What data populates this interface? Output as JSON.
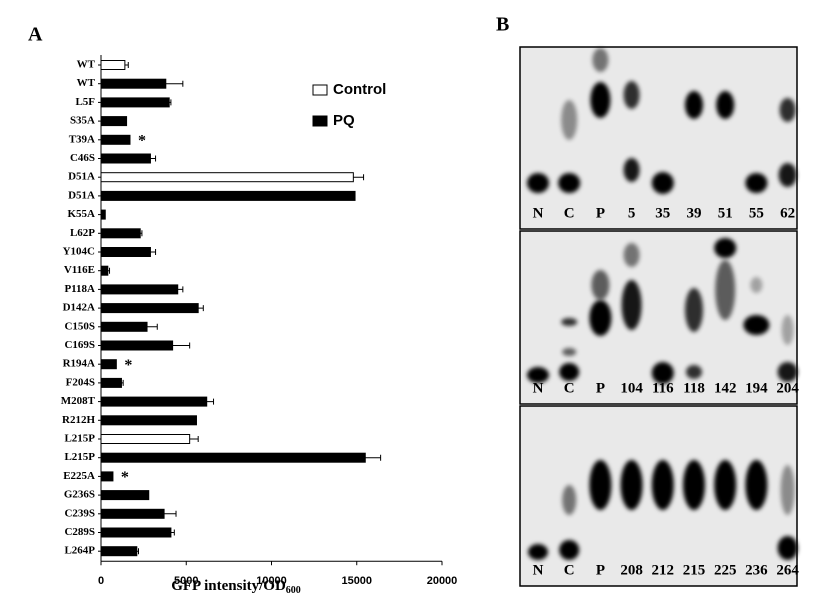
{
  "chart_data": {
    "type": "hbar",
    "panel_label": "A",
    "xlabel": "GFP intensity/OD",
    "xlabel_subscript": "600",
    "categories": [
      "WT",
      "WT",
      "L5F",
      "S35A",
      "T39A",
      "C46S",
      "D51A",
      "D51A",
      "K55A",
      "L62P",
      "Y104C",
      "V116E",
      "P118A",
      "D142A",
      "C150S",
      "C169S",
      "R194A",
      "F204S",
      "M208T",
      "R212H",
      "L215P",
      "L215P",
      "E225A",
      "G236S",
      "C239S",
      "C289S",
      "L264P"
    ],
    "markers": [
      null,
      null,
      null,
      null,
      "*",
      null,
      null,
      null,
      null,
      null,
      null,
      null,
      null,
      null,
      null,
      null,
      "*",
      null,
      null,
      null,
      null,
      null,
      "*",
      null,
      null,
      null,
      null
    ],
    "series": [
      {
        "name": "Control",
        "color": "#ffffff",
        "values": [
          1400,
          null,
          null,
          null,
          null,
          null,
          14800,
          null,
          null,
          null,
          null,
          null,
          null,
          null,
          null,
          null,
          null,
          null,
          null,
          null,
          5200,
          null,
          null,
          null,
          null,
          null,
          null
        ],
        "errors": [
          200,
          null,
          null,
          null,
          null,
          null,
          600,
          null,
          null,
          null,
          null,
          null,
          null,
          null,
          null,
          null,
          null,
          null,
          null,
          null,
          500,
          null,
          null,
          null,
          null,
          null,
          null
        ]
      },
      {
        "name": "PQ",
        "color": "#000000",
        "values": [
          null,
          3800,
          4000,
          1500,
          1700,
          2900,
          null,
          14900,
          250,
          2300,
          2900,
          400,
          4500,
          5700,
          2700,
          4200,
          900,
          1200,
          6200,
          5600,
          null,
          15500,
          700,
          2800,
          3700,
          4100,
          2100
        ],
        "errors": [
          null,
          1000,
          100,
          null,
          null,
          300,
          null,
          null,
          null,
          100,
          300,
          100,
          300,
          300,
          600,
          1000,
          null,
          100,
          400,
          null,
          null,
          900,
          null,
          null,
          700,
          200,
          100
        ]
      }
    ],
    "xlim": [
      0,
      20000
    ],
    "xticks": [
      0,
      5000,
      10000,
      15000,
      20000
    ]
  },
  "panel_b": {
    "label": "B",
    "gels": [
      {
        "lanes": [
          "N",
          "C",
          "P",
          "5",
          "35",
          "39",
          "51",
          "55",
          "62"
        ]
      },
      {
        "lanes": [
          "N",
          "C",
          "P",
          "104",
          "116",
          "118",
          "142",
          "194",
          "204"
        ]
      },
      {
        "lanes": [
          "N",
          "C",
          "P",
          "208",
          "212",
          "215",
          "225",
          "236",
          "264"
        ]
      }
    ]
  }
}
